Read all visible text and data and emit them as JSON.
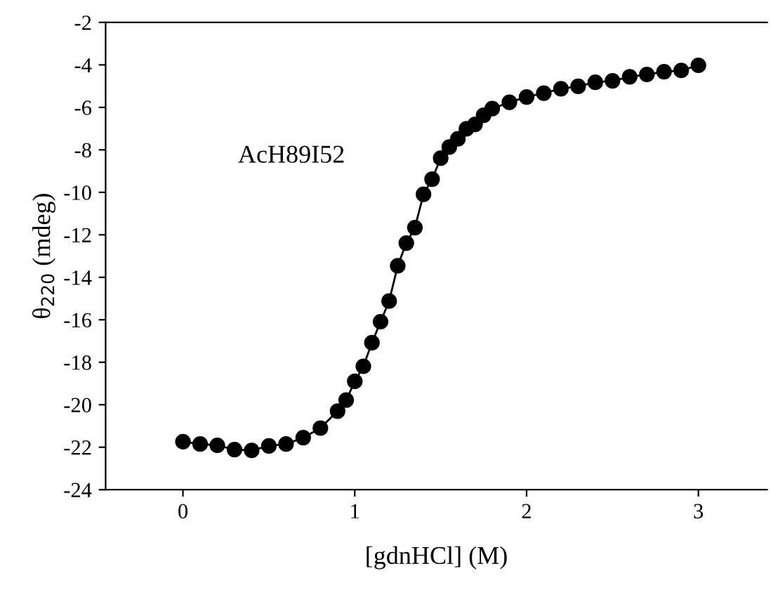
{
  "chart_data": {
    "type": "line",
    "xlabel": "[gdnHCl] (M)",
    "ylabel": "θ$_{220}$ (mdeg)",
    "annotations": [
      "AcH89I52"
    ],
    "series": [
      {
        "color": "#000000",
        "x": [
          0,
          0.1,
          0.2,
          0.3,
          0.4,
          0.5,
          0.6,
          0.7,
          0.8,
          0.9,
          0.95,
          1.0,
          1.05,
          1.1,
          1.15,
          1.2,
          1.25,
          1.3,
          1.35,
          1.4,
          1.45,
          1.5,
          1.55,
          1.6,
          1.65,
          1.7,
          1.75,
          1.8,
          1.9,
          2.0,
          2.1,
          2.2,
          2.3,
          2.4,
          2.5,
          2.6,
          2.7,
          2.8,
          2.9,
          3.0
        ],
        "values": [
          -21.74,
          -21.85,
          -21.91,
          -22.11,
          -22.15,
          -21.94,
          -21.85,
          -21.55,
          -21.1,
          -20.3,
          -19.78,
          -18.9,
          -18.19,
          -17.08,
          -16.09,
          -15.12,
          -13.46,
          -12.39,
          -11.66,
          -10.09,
          -9.38,
          -8.39,
          -7.87,
          -7.48,
          -7.01,
          -6.8,
          -6.37,
          -6.06,
          -5.76,
          -5.51,
          -5.33,
          -5.12,
          -5.01,
          -4.82,
          -4.75,
          -4.56,
          -4.45,
          -4.32,
          -4.26,
          -4.02
        ]
      }
    ],
    "marker": "circle",
    "line_style": "solid",
    "grid": false,
    "legend": false,
    "xlim": [
      -0.45,
      3.4
    ],
    "xticks": [
      0,
      1,
      2,
      3
    ],
    "ylim": [
      -24,
      -2
    ],
    "yticks": [
      -24,
      -22,
      -20,
      -18,
      -16,
      -14,
      -12,
      -10,
      -8,
      -6,
      -4,
      -2
    ]
  }
}
